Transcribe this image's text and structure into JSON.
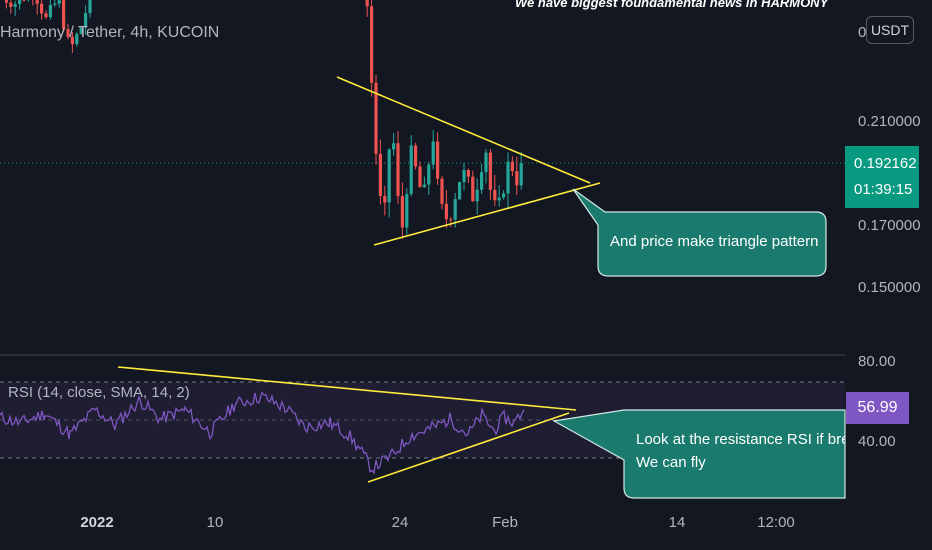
{
  "header": {
    "title": "Harmony / Tether, 4h, KUCOIN",
    "headline": "We have biggest foundamental news in HARMONY"
  },
  "price_axis": {
    "ticks": [
      "0",
      "0.210000",
      "0.170000",
      "0.150000"
    ],
    "currency_button": "USDT",
    "last_price": "0.192162",
    "countdown": "01:39:15"
  },
  "rsi_axis": {
    "ticks": [
      "80.00",
      "40.00"
    ],
    "value": "56.99"
  },
  "rsi_label": "RSI (14, close, SMA, 14, 2)",
  "time_axis": [
    "2022",
    "10",
    "24",
    "Feb",
    "14",
    "12:00"
  ],
  "annotations": {
    "price_callout": "And price make triangle pattern",
    "rsi_callout_line1": "Look at the resistance RSI if break",
    "rsi_callout_line2": "We can fly"
  },
  "colors": {
    "background": "#131722",
    "up_candle": "#26a69a",
    "down_candle": "#ef5350",
    "trendline": "#ffeb3b",
    "rsi_line": "#7e57c2",
    "callout_fill": "#1a7a6d",
    "last_price": "#089981"
  },
  "chart_data": [
    {
      "type": "candlestick",
      "title": "Harmony / Tether, 4h, KUCOIN",
      "yticks": [
        0.21,
        0.17,
        0.15
      ],
      "ylim": [
        0.133,
        0.273
      ],
      "last_price": 0.192162,
      "grid": false,
      "x_ticks": [
        "2022",
        "10",
        "24",
        "Feb",
        "14",
        "12:00"
      ],
      "ohlc_approx": [
        {
          "x": "late Dec",
          "open": 0.255,
          "high": 0.262,
          "low": 0.242,
          "close": 0.25
        },
        {
          "x": "2022",
          "open": 0.262,
          "high": 0.273,
          "low": 0.253,
          "close": 0.268
        },
        {
          "x": "10",
          "open": 0.262,
          "high": 0.273,
          "low": 0.255,
          "close": 0.27
        },
        {
          "x": "mid Jan",
          "open": 0.268,
          "high": 0.273,
          "low": 0.25,
          "close": 0.262
        },
        {
          "x": "21",
          "open": 0.245,
          "high": 0.255,
          "low": 0.215,
          "close": 0.22
        },
        {
          "x": "24",
          "open": 0.195,
          "high": 0.215,
          "low": 0.163,
          "close": 0.185
        },
        {
          "x": "27",
          "open": 0.185,
          "high": 0.208,
          "low": 0.166,
          "close": 0.19
        },
        {
          "x": "Feb",
          "open": 0.185,
          "high": 0.195,
          "low": 0.175,
          "close": 0.192162
        }
      ],
      "trendlines": [
        {
          "role": "resistance",
          "from": [
            0.227,
            "21"
          ],
          "to": [
            0.189,
            "Feb+"
          ]
        },
        {
          "role": "support",
          "from": [
            0.164,
            "22"
          ],
          "to": [
            0.187,
            "Feb+"
          ]
        }
      ]
    },
    {
      "type": "line",
      "series": [
        {
          "name": "RSI (14, close, SMA, 14, 2)"
        }
      ],
      "yticks": [
        80,
        40
      ],
      "bands": [
        70,
        50,
        30
      ],
      "ylim": [
        11,
        84
      ],
      "current": 56.99,
      "x": [
        "late Dec",
        "2022",
        "10",
        "mid Jan",
        "21",
        "23",
        "24",
        "27",
        "Feb"
      ],
      "values": [
        53,
        46,
        55,
        63,
        48,
        33,
        24,
        50,
        56.99
      ],
      "trendlines": [
        {
          "role": "resistance",
          "from": [
            77,
            "2022"
          ],
          "to": [
            53,
            "Feb+"
          ]
        },
        {
          "role": "support",
          "from": [
            24,
            "23"
          ],
          "to": [
            50,
            "Feb+"
          ]
        }
      ]
    }
  ]
}
